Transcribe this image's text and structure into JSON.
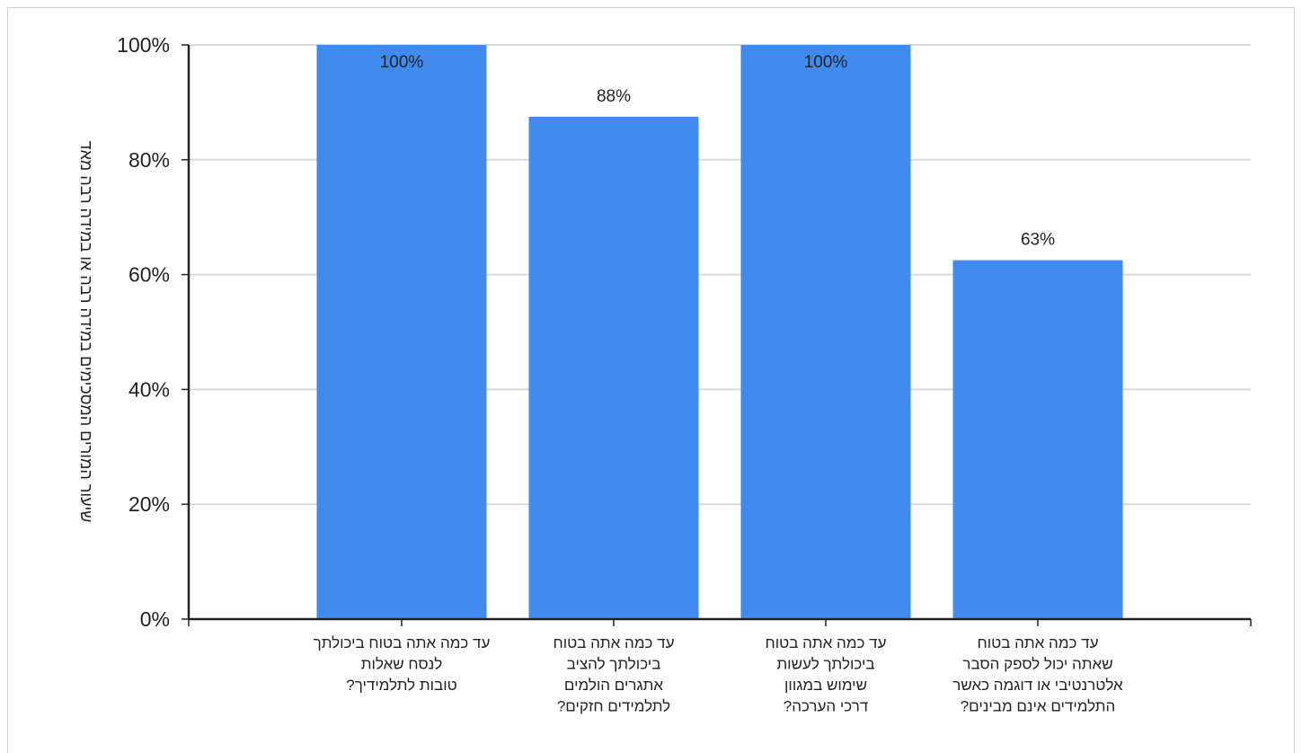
{
  "chart_data": {
    "type": "bar",
    "title": "",
    "xlabel": "",
    "ylabel": "שיעור המורים המסכימים במידה רבה או במידה רבה מאד",
    "ylim": [
      0,
      100
    ],
    "yticks": [
      0,
      20,
      40,
      60,
      80,
      100
    ],
    "ytick_labels": [
      "0%",
      "20%",
      "40%",
      "60%",
      "80%",
      "100%"
    ],
    "grid": true,
    "bar_color": "#418BEF",
    "categories": [
      [
        "עד כמה אתה בטוח ביכולתך",
        "לנסח שאלות",
        "טובות לתלמידיך?"
      ],
      [
        "עד כמה אתה בטוח",
        "ביכולתך להציב",
        "אתגרים הולמים",
        "לתלמידים חזקים?"
      ],
      [
        "עד כמה אתה בטוח",
        "ביכולתך לעשות",
        "שימוש במגוון",
        "דרכי הערכה?"
      ],
      [
        "עד כמה אתה בטוח",
        "שאתה יכול לספק הסבר",
        "אלטרנטיבי או דוגמה כאשר",
        "התלמידים אינם מבינים?"
      ]
    ],
    "values": [
      100,
      87.5,
      100,
      62.5
    ],
    "data_labels": [
      "100%",
      "88%",
      "100%",
      "63%"
    ]
  }
}
